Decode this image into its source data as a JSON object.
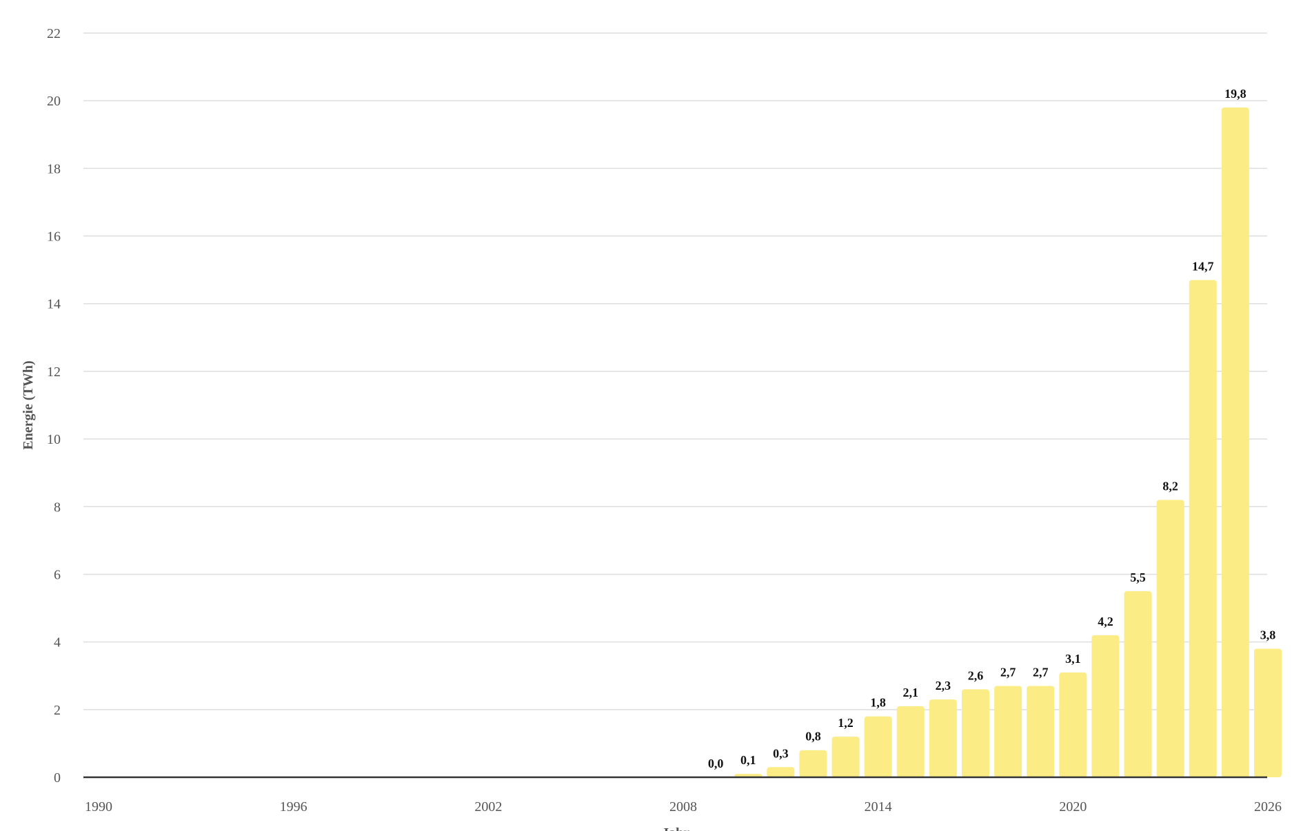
{
  "chart_data": {
    "type": "bar",
    "ylabel": "Energie (TWh)",
    "xlabel": "Jahr",
    "xlim": [
      1990,
      2026
    ],
    "ylim": [
      0,
      22
    ],
    "x_ticks": [
      1990,
      1996,
      2002,
      2008,
      2014,
      2020,
      2026
    ],
    "y_ticks": [
      0,
      2,
      4,
      6,
      8,
      10,
      12,
      14,
      16,
      18,
      20,
      22
    ],
    "grid": true,
    "bar_color": "#fbec86",
    "x": [
      2009,
      2010,
      2011,
      2012,
      2013,
      2014,
      2015,
      2016,
      2017,
      2018,
      2019,
      2020,
      2021,
      2022,
      2023,
      2024,
      2025,
      2026
    ],
    "values": [
      0.0,
      0.1,
      0.3,
      0.8,
      1.2,
      1.8,
      2.1,
      2.3,
      2.6,
      2.7,
      2.7,
      3.1,
      4.2,
      5.5,
      8.2,
      14.7,
      19.8,
      3.8
    ],
    "labels": [
      "0,0",
      "0,1",
      "0,3",
      "0,8",
      "1,2",
      "1,8",
      "2,1",
      "2,3",
      "2,6",
      "2,7",
      "2,7",
      "3,1",
      "4,2",
      "5,5",
      "8,2",
      "14,7",
      "19,8",
      "3,8"
    ]
  }
}
